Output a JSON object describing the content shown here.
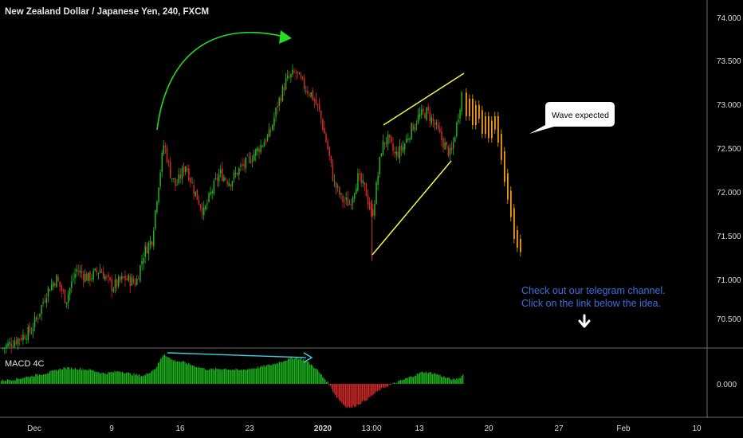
{
  "chart_title": "New Zealand Dollar / Japanese Yen, 240, FXCM",
  "price_axis": [
    "74.000",
    "73.500",
    "73.000",
    "72.500",
    "72.000",
    "71.500",
    "71.000",
    "70.500"
  ],
  "macd_label": "MACD 4C",
  "macd_axis_label": "0.000",
  "time_axis": [
    "Dec",
    "9",
    "16",
    "23",
    "2020",
    "13:00",
    "13",
    "20",
    "27",
    "Feb",
    "10"
  ],
  "annotations": {
    "callout": "Wave expected",
    "telegram_line1": "Check out our telegram channel.",
    "telegram_line2": "Click on the link below the idea."
  },
  "colors": {
    "bullish": "#1fb51f",
    "bearish": "#d42a2a",
    "projection": "#f39c12",
    "arc_arrow": "#22dd22",
    "channel": "#f5f542",
    "macd_divergence": "#35d6e6",
    "telegram_text": "#3d6fe0"
  },
  "chart_data": {
    "type": "candlestick",
    "series": [
      {
        "name": "NZD/JPY",
        "ohlc_keypoints": [
          [
            "start",
            70.25
          ],
          [
            "Dec 9",
            70.95
          ],
          [
            "Dec 13",
            71.5
          ],
          [
            "Dec 14",
            72.65
          ],
          [
            "Dec 19",
            71.8
          ],
          [
            "Dec 27",
            73.4
          ],
          [
            "Jan 2",
            72.4
          ],
          [
            "Jan 7",
            71.95
          ],
          [
            "Jan 8",
            71.25
          ],
          [
            "Jan 9",
            72.7
          ],
          [
            "Jan 14",
            72.95
          ],
          [
            "Jan 16",
            72.35
          ],
          [
            "Jan 17",
            73.3
          ]
        ]
      },
      {
        "name": "projection",
        "ohlc_keypoints": [
          [
            "Jan 17",
            73.1
          ],
          [
            "Jan 23",
            71.45
          ]
        ]
      }
    ],
    "ylim": [
      70.15,
      74.05
    ],
    "macd": {
      "label": "MACD 4C",
      "zero": "0.000"
    }
  }
}
